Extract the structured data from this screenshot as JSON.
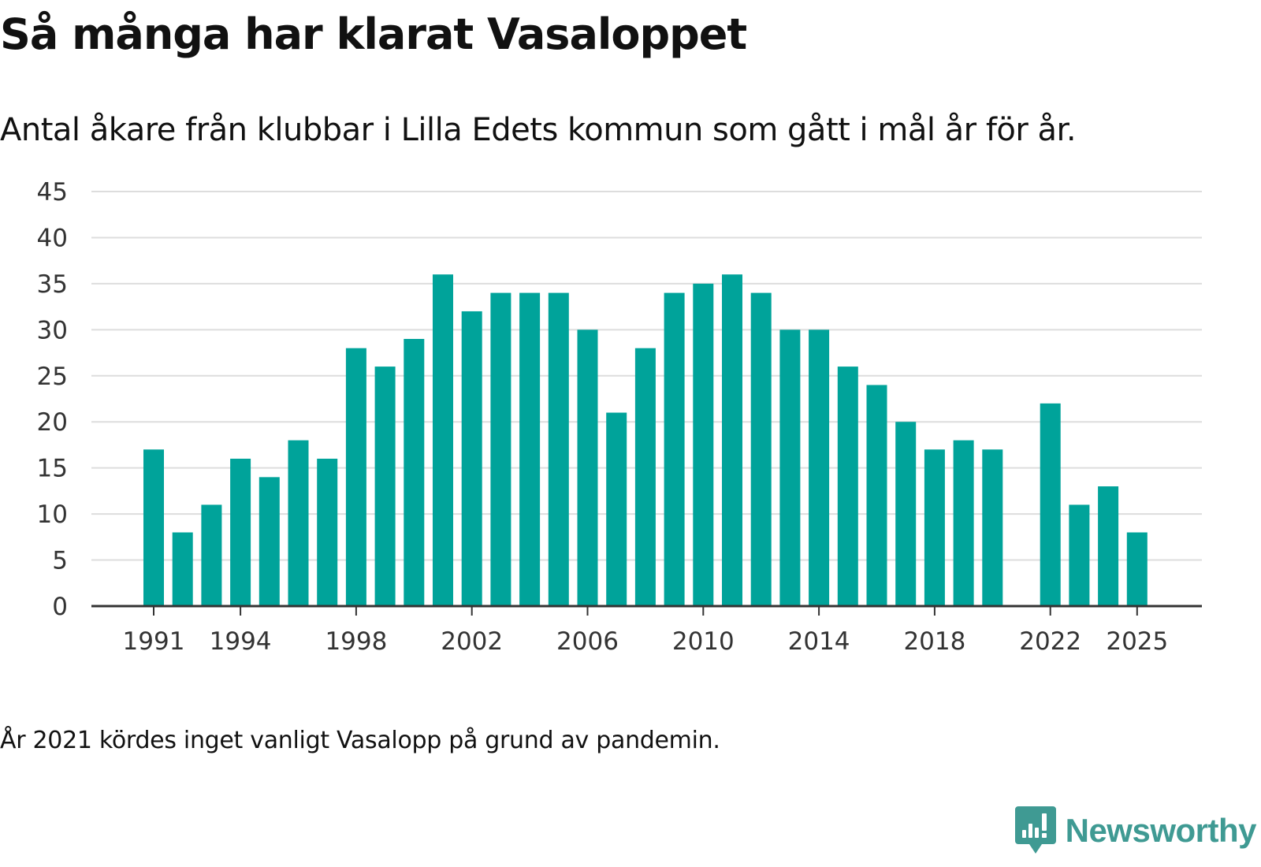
{
  "title": "Så många har klarat Vasaloppet",
  "subtitle": "Antal åkare från klubbar i Lilla Edets kommun som gått i mål år för år.",
  "note": "År 2021 kördes inget vanligt Vasalopp på grund av pandemin.",
  "brand": {
    "name": "Newsworthy",
    "icon": "newsworthy-logo-icon",
    "color": "#3f9a93"
  },
  "colors": {
    "bar": "#00a39a",
    "grid": "#dddddd",
    "axis": "#333333",
    "text": "#111111"
  },
  "chart_data": {
    "type": "bar",
    "title": "Så många har klarat Vasaloppet",
    "xlabel": "",
    "ylabel": "",
    "ylim": [
      0,
      45
    ],
    "yticks": [
      0,
      5,
      10,
      15,
      20,
      25,
      30,
      35,
      40,
      45
    ],
    "xticks": [
      1991,
      1994,
      1998,
      2002,
      2006,
      2010,
      2014,
      2018,
      2022,
      2025
    ],
    "grid": true,
    "categories": [
      1991,
      1992,
      1993,
      1994,
      1995,
      1996,
      1997,
      1998,
      1999,
      2000,
      2001,
      2002,
      2003,
      2004,
      2005,
      2006,
      2007,
      2008,
      2009,
      2010,
      2011,
      2012,
      2013,
      2014,
      2015,
      2016,
      2017,
      2018,
      2019,
      2020,
      2021,
      2022,
      2023,
      2024,
      2025
    ],
    "values": [
      17,
      8,
      11,
      16,
      14,
      18,
      16,
      28,
      26,
      29,
      36,
      32,
      34,
      34,
      34,
      30,
      21,
      28,
      34,
      35,
      36,
      34,
      30,
      30,
      26,
      24,
      20,
      17,
      18,
      17,
      null,
      22,
      11,
      13,
      8
    ]
  }
}
